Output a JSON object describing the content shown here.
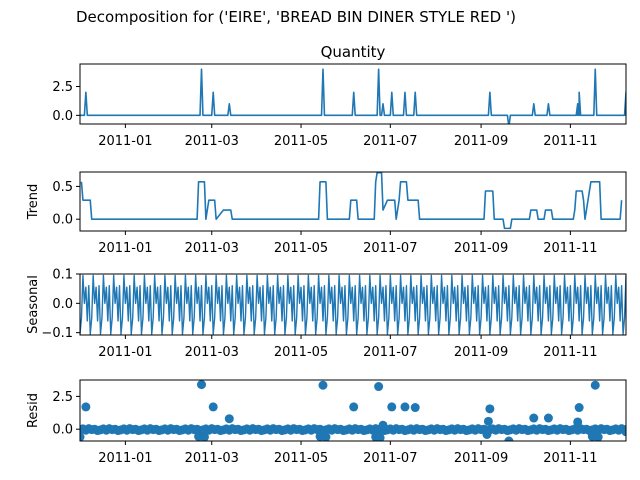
{
  "figure": {
    "suptitle": "Decomposition for ('EIRE', 'BREAD BIN DINER STYLE RED ')"
  },
  "chart_data": [
    {
      "type": "line",
      "id": "observed",
      "title": "Quantity",
      "ylabel": "",
      "color": "#1f77b4",
      "xlim": [
        "2010-12-01",
        "2011-12-09"
      ],
      "ylim": [
        -0.75,
        4.45
      ],
      "yticks": [
        {
          "value": 2.5,
          "label": "2.5"
        },
        {
          "value": 0.0,
          "label": "0.0"
        }
      ],
      "xticks": [
        {
          "value": "2011-01-01",
          "label": "2011-01"
        },
        {
          "value": "2011-03-01",
          "label": "2011-03"
        },
        {
          "value": "2011-05-01",
          "label": "2011-05"
        },
        {
          "value": "2011-07-01",
          "label": "2011-07"
        },
        {
          "value": "2011-09-01",
          "label": "2011-09"
        },
        {
          "value": "2011-11-01",
          "label": "2011-11"
        }
      ],
      "base": 0,
      "events": [
        {
          "date": "2010-12-05",
          "value": 2
        },
        {
          "date": "2011-02-22",
          "value": 4
        },
        {
          "date": "2011-03-02",
          "value": 2
        },
        {
          "date": "2011-03-13",
          "value": 1
        },
        {
          "date": "2011-05-16",
          "value": 4
        },
        {
          "date": "2011-06-06",
          "value": 2
        },
        {
          "date": "2011-06-23",
          "value": 4
        },
        {
          "date": "2011-06-26",
          "value": 1
        },
        {
          "date": "2011-07-02",
          "value": 2
        },
        {
          "date": "2011-07-11",
          "value": 2
        },
        {
          "date": "2011-07-18",
          "value": 2
        },
        {
          "date": "2011-09-07",
          "value": 2
        },
        {
          "date": "2011-09-20",
          "value": -1
        },
        {
          "date": "2011-10-07",
          "value": 1
        },
        {
          "date": "2011-10-17",
          "value": 1
        },
        {
          "date": "2011-11-06",
          "value": 1
        },
        {
          "date": "2011-11-07",
          "value": 2
        },
        {
          "date": "2011-11-18",
          "value": 4
        },
        {
          "date": "2011-12-09",
          "value": 2
        }
      ]
    },
    {
      "type": "line",
      "id": "trend",
      "title": "",
      "ylabel": "Trend",
      "color": "#1f77b4",
      "xlim": [
        "2010-12-01",
        "2011-12-09"
      ],
      "ylim": [
        -0.18,
        0.72
      ],
      "yticks": [
        {
          "value": 0.5,
          "label": "0.5"
        },
        {
          "value": 0.0,
          "label": "0.0"
        }
      ],
      "xticks": [
        {
          "value": "2011-01-01",
          "label": "2011-01"
        },
        {
          "value": "2011-03-01",
          "label": "2011-03"
        },
        {
          "value": "2011-05-01",
          "label": "2011-05"
        },
        {
          "value": "2011-07-01",
          "label": "2011-07"
        },
        {
          "value": "2011-09-01",
          "label": "2011-09"
        },
        {
          "value": "2011-11-01",
          "label": "2011-11"
        }
      ],
      "points": [
        {
          "date": "2010-12-02",
          "value": 0.57
        },
        {
          "date": "2010-12-03",
          "value": 0.29
        },
        {
          "date": "2010-12-08",
          "value": 0.29
        },
        {
          "date": "2010-12-09",
          "value": 0.0
        },
        {
          "date": "2011-02-19",
          "value": 0.0
        },
        {
          "date": "2011-02-20",
          "value": 0.57
        },
        {
          "date": "2011-02-24",
          "value": 0.57
        },
        {
          "date": "2011-02-25",
          "value": 0.0
        },
        {
          "date": "2011-02-27",
          "value": 0.29
        },
        {
          "date": "2011-03-03",
          "value": 0.29
        },
        {
          "date": "2011-03-04",
          "value": 0.0
        },
        {
          "date": "2011-03-09",
          "value": 0.14
        },
        {
          "date": "2011-03-14",
          "value": 0.14
        },
        {
          "date": "2011-03-15",
          "value": 0.0
        },
        {
          "date": "2011-05-13",
          "value": 0.0
        },
        {
          "date": "2011-05-14",
          "value": 0.57
        },
        {
          "date": "2011-05-18",
          "value": 0.57
        },
        {
          "date": "2011-05-19",
          "value": 0.0
        },
        {
          "date": "2011-06-03",
          "value": 0.0
        },
        {
          "date": "2011-06-04",
          "value": 0.29
        },
        {
          "date": "2011-06-08",
          "value": 0.29
        },
        {
          "date": "2011-06-09",
          "value": 0.0
        },
        {
          "date": "2011-06-20",
          "value": 0.0
        },
        {
          "date": "2011-06-21",
          "value": 0.57
        },
        {
          "date": "2011-06-22",
          "value": 0.71
        },
        {
          "date": "2011-06-25",
          "value": 0.71
        },
        {
          "date": "2011-06-26",
          "value": 0.14
        },
        {
          "date": "2011-06-29",
          "value": 0.29
        },
        {
          "date": "2011-07-04",
          "value": 0.29
        },
        {
          "date": "2011-07-05",
          "value": 0.0
        },
        {
          "date": "2011-07-07",
          "value": 0.29
        },
        {
          "date": "2011-07-08",
          "value": 0.57
        },
        {
          "date": "2011-07-12",
          "value": 0.57
        },
        {
          "date": "2011-07-13",
          "value": 0.29
        },
        {
          "date": "2011-07-20",
          "value": 0.29
        },
        {
          "date": "2011-07-21",
          "value": 0.0
        },
        {
          "date": "2011-09-03",
          "value": 0.0
        },
        {
          "date": "2011-09-04",
          "value": 0.43
        },
        {
          "date": "2011-09-09",
          "value": 0.43
        },
        {
          "date": "2011-09-10",
          "value": 0.0
        },
        {
          "date": "2011-09-16",
          "value": 0.0
        },
        {
          "date": "2011-09-17",
          "value": -0.14
        },
        {
          "date": "2011-09-21",
          "value": -0.14
        },
        {
          "date": "2011-09-22",
          "value": 0.0
        },
        {
          "date": "2011-10-04",
          "value": 0.0
        },
        {
          "date": "2011-10-05",
          "value": 0.14
        },
        {
          "date": "2011-10-09",
          "value": 0.14
        },
        {
          "date": "2011-10-10",
          "value": 0.0
        },
        {
          "date": "2011-10-14",
          "value": 0.0
        },
        {
          "date": "2011-10-15",
          "value": 0.14
        },
        {
          "date": "2011-10-19",
          "value": 0.14
        },
        {
          "date": "2011-10-20",
          "value": 0.0
        },
        {
          "date": "2011-11-03",
          "value": 0.0
        },
        {
          "date": "2011-11-04",
          "value": 0.14
        },
        {
          "date": "2011-11-05",
          "value": 0.43
        },
        {
          "date": "2011-11-09",
          "value": 0.43
        },
        {
          "date": "2011-11-10",
          "value": 0.29
        },
        {
          "date": "2011-11-11",
          "value": 0.0
        },
        {
          "date": "2011-11-15",
          "value": 0.57
        },
        {
          "date": "2011-11-21",
          "value": 0.57
        },
        {
          "date": "2011-11-22",
          "value": 0.0
        },
        {
          "date": "2011-12-05",
          "value": 0.0
        },
        {
          "date": "2011-12-06",
          "value": 0.29
        }
      ]
    },
    {
      "type": "line",
      "id": "seasonal",
      "title": "",
      "ylabel": "Seasonal",
      "color": "#1f77b4",
      "xlim": [
        "2010-12-01",
        "2011-12-09"
      ],
      "ylim": [
        -0.108,
        0.1
      ],
      "yticks": [
        {
          "value": 0.1,
          "label": "0.1"
        },
        {
          "value": 0.0,
          "label": "0.0"
        },
        {
          "value": -0.1,
          "label": "−0.1"
        }
      ],
      "xticks": [
        {
          "value": "2011-01-01",
          "label": "2011-01"
        },
        {
          "value": "2011-03-01",
          "label": "2011-03"
        },
        {
          "value": "2011-05-01",
          "label": "2011-05"
        },
        {
          "value": "2011-07-01",
          "label": "2011-07"
        },
        {
          "value": "2011-09-01",
          "label": "2011-09"
        },
        {
          "value": "2011-11-01",
          "label": "2011-11"
        }
      ],
      "period_days": 7,
      "start": "2010-12-01",
      "end": "2011-12-09",
      "pattern": [
        -0.105,
        -0.05,
        0.095,
        0.0,
        0.055,
        -0.06,
        0.06
      ]
    },
    {
      "type": "scatter",
      "id": "resid",
      "title": "",
      "ylabel": "Resid",
      "color": "#1f77b4",
      "xlim": [
        "2010-12-01",
        "2011-12-09"
      ],
      "ylim": [
        -0.9,
        3.75
      ],
      "yticks": [
        {
          "value": 2.5,
          "label": "2.5"
        },
        {
          "value": 0.0,
          "label": "0.0"
        }
      ],
      "xticks": [
        {
          "value": "2011-01-01",
          "label": "2011-01"
        },
        {
          "value": "2011-03-01",
          "label": "2011-03"
        },
        {
          "value": "2011-05-01",
          "label": "2011-05"
        },
        {
          "value": "2011-07-01",
          "label": "2011-07"
        },
        {
          "value": "2011-09-01",
          "label": "2011-09"
        },
        {
          "value": "2011-11-01",
          "label": "2011-11"
        }
      ],
      "zero_line": 0,
      "baseline_start": "2010-12-01",
      "baseline_end": "2011-12-09",
      "baseline_step_days": 2,
      "baseline_pattern": [
        -0.05,
        0.02,
        -0.08,
        0.04,
        -0.03,
        0.0,
        -0.1
      ],
      "notable": [
        {
          "date": "2010-12-01",
          "value": -0.6
        },
        {
          "date": "2010-12-05",
          "value": 1.7
        },
        {
          "date": "2011-02-20",
          "value": -0.55
        },
        {
          "date": "2011-02-22",
          "value": 3.4
        },
        {
          "date": "2011-02-24",
          "value": -0.6
        },
        {
          "date": "2011-03-02",
          "value": 1.7
        },
        {
          "date": "2011-03-13",
          "value": 0.8
        },
        {
          "date": "2011-05-14",
          "value": -0.55
        },
        {
          "date": "2011-05-16",
          "value": 3.35
        },
        {
          "date": "2011-05-18",
          "value": -0.6
        },
        {
          "date": "2011-06-06",
          "value": 1.7
        },
        {
          "date": "2011-06-21",
          "value": -0.6
        },
        {
          "date": "2011-06-23",
          "value": 3.25
        },
        {
          "date": "2011-06-24",
          "value": -0.65
        },
        {
          "date": "2011-06-26",
          "value": 0.3
        },
        {
          "date": "2011-07-02",
          "value": 1.7
        },
        {
          "date": "2011-07-11",
          "value": 1.7
        },
        {
          "date": "2011-07-18",
          "value": 1.65
        },
        {
          "date": "2011-09-05",
          "value": -0.4
        },
        {
          "date": "2011-09-07",
          "value": 1.55
        },
        {
          "date": "2011-09-06",
          "value": 0.6
        },
        {
          "date": "2011-09-20",
          "value": -0.9
        },
        {
          "date": "2011-10-07",
          "value": 0.85
        },
        {
          "date": "2011-10-17",
          "value": 0.85
        },
        {
          "date": "2011-11-06",
          "value": 0.55
        },
        {
          "date": "2011-11-07",
          "value": 1.65
        },
        {
          "date": "2011-11-16",
          "value": -0.55
        },
        {
          "date": "2011-11-18",
          "value": 3.35
        },
        {
          "date": "2011-11-20",
          "value": -0.6
        },
        {
          "date": "2011-12-09",
          "value": -0.2
        }
      ]
    }
  ]
}
